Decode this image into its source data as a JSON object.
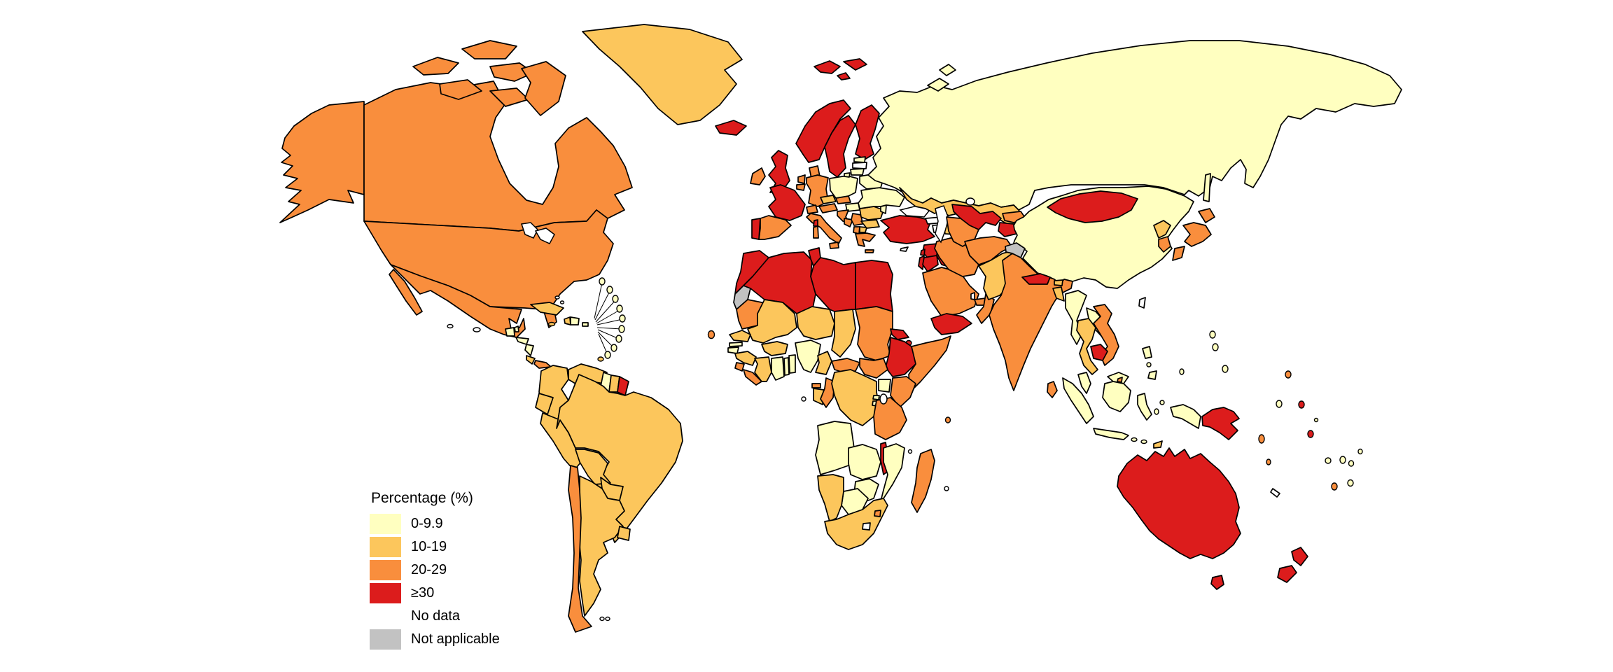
{
  "legend": {
    "title": "Percentage (%)",
    "items": [
      {
        "key": "c1",
        "label": "0-9.9"
      },
      {
        "key": "c2",
        "label": "10-19"
      },
      {
        "key": "c3",
        "label": "20-29"
      },
      {
        "key": "c4",
        "label": "≥30"
      },
      {
        "key": "nd",
        "label": "No data"
      },
      {
        "key": "na",
        "label": "Not applicable"
      }
    ]
  },
  "palette": {
    "c1": "#FFFFC0",
    "c2": "#FCC65C",
    "c3": "#F98E3D",
    "c4": "#DC1C1C",
    "nd": "#FFFFFF",
    "na": "#C2C2C2",
    "border": "#000000",
    "ocean": "#FFFFFF"
  },
  "regions": {
    "canada": "c3",
    "united-states": "c3",
    "hawaii": "nd",
    "greenland": "c2",
    "iceland": "c4",
    "mexico": "c3",
    "belize": "c1",
    "guatemala": "c1",
    "honduras": "c1",
    "nicaragua": "c1",
    "costa-rica": "c2",
    "panama": "c3",
    "cuba": "c2",
    "bahamas": "nd",
    "jamaica": "c2",
    "haiti": "c2",
    "dominican-republic": "c1",
    "puerto-rico": "c1",
    "lesser-antilles": "c1",
    "trinidad-and-tobago": "c2",
    "cape-verde": "c3",
    "colombia": "c2",
    "venezuela": "c2",
    "guyana": "c1",
    "suriname": "c2",
    "french-guiana": "c4",
    "ecuador": "c2",
    "peru": "c2",
    "brazil": "c2",
    "bolivia": "c2",
    "paraguay": "c2",
    "chile": "c3",
    "argentina": "c2",
    "uruguay": "c2",
    "falkland-islands": "nd",
    "svalbard": "c4",
    "norway": "c4",
    "sweden": "c4",
    "finland": "c4",
    "denmark": "c3",
    "united-kingdom": "c4",
    "ireland": "c3",
    "france": "c4",
    "spain": "c3",
    "portugal": "c4",
    "netherlands": "c3",
    "belgium": "c3",
    "germany": "c3",
    "switzerland": "c3",
    "austria": "c3",
    "czechia": "c2",
    "slovakia": "c3",
    "poland": "c1",
    "hungary": "c1",
    "italy": "c3",
    "croatia": "c3",
    "bosnia-and-herzegovina": "c3",
    "serbia": "c3",
    "albania": "c3",
    "north-macedonia": "c2",
    "greece": "c3",
    "bulgaria": "c2",
    "romania": "c2",
    "moldova": "c1",
    "ukraine": "c1",
    "belarus": "c1",
    "estonia": "c1",
    "latvia": "nd",
    "lithuania": "c1",
    "russia": "c1",
    "morocco": "c4",
    "western-sahara": "na",
    "algeria": "c4",
    "tunisia": "c4",
    "libya": "c4",
    "egypt": "c4",
    "mauritania": "c3",
    "mali": "c2",
    "niger": "c2",
    "chad": "c2",
    "sudan": "c3",
    "eritrea": "c4",
    "djibouti": "c4",
    "ethiopia": "c4",
    "somalia": "c3",
    "senegal": "c2",
    "gambia": "c1",
    "guinea-bissau": "c1",
    "guinea": "c2",
    "sierra-leone": "c3",
    "liberia": "c3",
    "cote-divoire": "c2",
    "ghana": "c1",
    "togo": "c1",
    "benin": "c1",
    "burkina-faso": "c2",
    "nigeria": "c1",
    "cameroon": "c2",
    "central-african-republic": "c3",
    "south-sudan": "c3",
    "equatorial-guinea": "c3",
    "gabon": "c2",
    "congo": "c3",
    "dr-congo": "c2",
    "uganda": "c1",
    "kenya": "c3",
    "rwanda": "c1",
    "burundi": "c1",
    "tanzania": "c3",
    "angola": "c1",
    "zambia": "c1",
    "malawi": "c4",
    "mozambique": "c1",
    "zimbabwe": "c1",
    "botswana": "c1",
    "namibia": "c2",
    "south-africa": "c2",
    "lesotho": "nd",
    "eswatini": "c3",
    "madagascar": "c3",
    "comoros": "nd",
    "seychelles": "c3",
    "mauritius": "nd",
    "sao-tome-and-principe": "nd",
    "turkey": "c4",
    "cyprus": "nd",
    "syria": "c4",
    "lebanon": "c4",
    "israel": "c4",
    "jordan": "c4",
    "iraq": "c4",
    "kuwait": "c4",
    "saudi-arabia": "c3",
    "qatar": "nd",
    "united-arab-emirates": "c3",
    "oman": "c3",
    "yemen": "c4",
    "georgia": "nd",
    "armenia": "nd",
    "azerbaijan": "c2",
    "iran": "c3",
    "kazakhstan": "c2",
    "uzbekistan": "c4",
    "turkmenistan": "c3",
    "kyrgyzstan": "c3",
    "tajikistan": "c4",
    "afghanistan": "c3",
    "pakistan": "c2",
    "india": "c3",
    "jammu-kashmir": "na",
    "nepal": "c4",
    "bhutan": "c2",
    "bangladesh": "c2",
    "sri-lanka": "c3",
    "china": "c1",
    "mongolia": "c4",
    "north-korea": "c2",
    "south-korea": "c3",
    "japan": "c3",
    "taiwan": "nd",
    "myanmar": "c1",
    "laos": "c1",
    "thailand": "c2",
    "vietnam": "c3",
    "cambodia": "c4",
    "malaysia": "c1",
    "brunei": "c3",
    "indonesia": "c1",
    "timor-leste": "c2",
    "philippines": "c1",
    "papua-new-guinea": "c4",
    "australia": "c4",
    "new-zealand": "c4",
    "new-caledonia": "nd",
    "fiji": "c4",
    "vanuatu": "c3",
    "solomon-islands": "c3",
    "nauru": "c4",
    "palau": "c1",
    "micronesia": "c1",
    "guam": "c3",
    "marshall-islands": "c1",
    "samoa": "c1",
    "tonga": "c3",
    "cook-islands": "c1",
    "niue": "c1",
    "kiribati": "c1",
    "tuvalu": "c1"
  }
}
